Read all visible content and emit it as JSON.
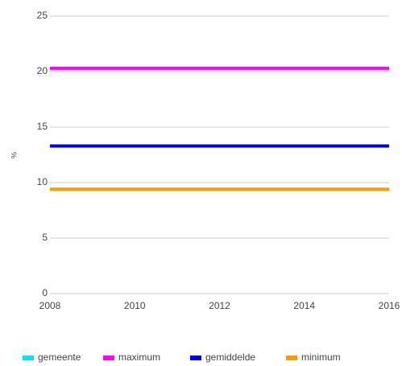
{
  "chart_data": {
    "type": "line",
    "y_label": "%",
    "x": [
      2008,
      2009,
      2010,
      2011,
      2012,
      2013,
      2014,
      2015,
      2016
    ],
    "series": [
      {
        "name": "gemeente",
        "color": "#00e5ee",
        "values": [
          13.3,
          13.3,
          13.3,
          13.3,
          13.3,
          13.3,
          13.3,
          13.3,
          13.3
        ]
      },
      {
        "name": "maximum",
        "color": "#ff00ff",
        "values": [
          20.3,
          20.3,
          20.3,
          20.3,
          20.3,
          20.3,
          20.3,
          20.3,
          20.3
        ]
      },
      {
        "name": "gemiddelde",
        "color": "#0000ee",
        "values": [
          13.3,
          13.3,
          13.3,
          13.3,
          13.3,
          13.3,
          13.3,
          13.3,
          13.3
        ]
      },
      {
        "name": "minimum",
        "color": "#ff9900",
        "values": [
          9.4,
          9.4,
          9.4,
          9.4,
          9.4,
          9.4,
          9.4,
          9.4,
          9.4
        ]
      }
    ],
    "xlim": [
      2008,
      2016
    ],
    "xticks": [
      2008,
      2010,
      2012,
      2014,
      2016
    ],
    "ylim": [
      0,
      25
    ],
    "yticks": [
      0,
      5,
      10,
      15,
      20,
      25
    ],
    "grid": true,
    "legend": "bottom"
  }
}
